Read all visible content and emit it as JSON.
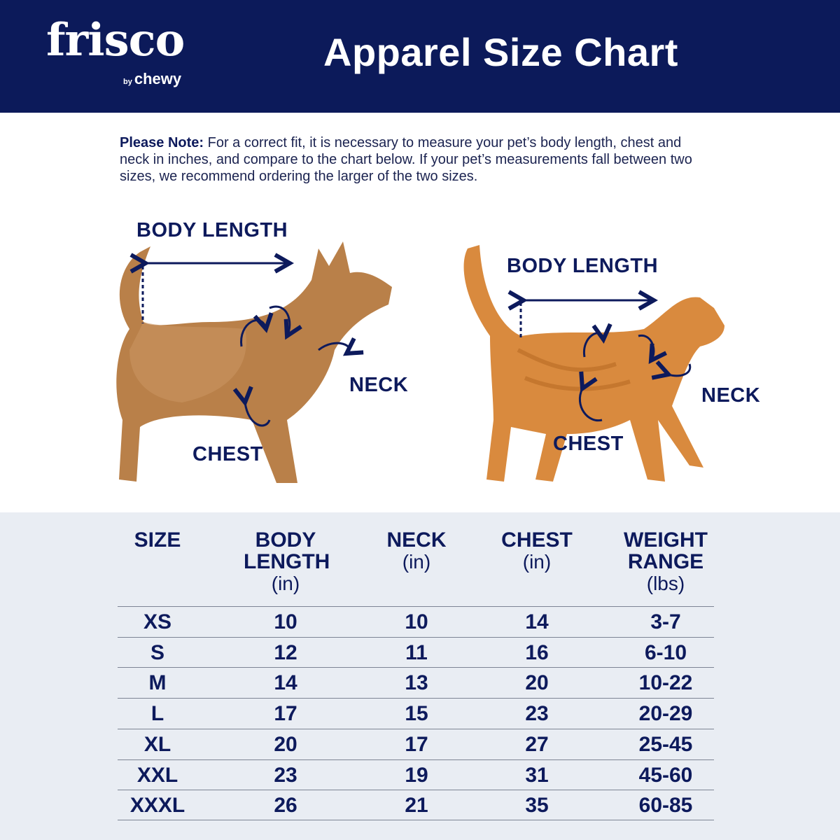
{
  "brand": {
    "logo_text": "frisco",
    "sub": "by",
    "sub_brand": "chewy"
  },
  "header": {
    "title": "Apparel Size Chart"
  },
  "note": {
    "label": "Please Note:",
    "text": " For a correct fit, it is necessary to measure your pet’s body length, chest and neck in inches, and compare to the chart below. If your pet’s measurements fall between two sizes, we recommend ordering the larger of the two sizes."
  },
  "diagram": {
    "dog": {
      "body_length": "BODY LENGTH",
      "neck": "NECK",
      "chest": "CHEST"
    },
    "cat": {
      "body_length": "BODY LENGTH",
      "neck": "NECK",
      "chest": "CHEST"
    }
  },
  "colors": {
    "navy": "#0c1a5a",
    "table_bg": "#e9edf3"
  },
  "table": {
    "headers": [
      {
        "title": "SIZE",
        "unit": ""
      },
      {
        "title": "BODY LENGTH",
        "unit": "(in)"
      },
      {
        "title": "NECK",
        "unit": "(in)"
      },
      {
        "title": "CHEST",
        "unit": "(in)"
      },
      {
        "title": "WEIGHT RANGE",
        "unit": "(lbs)"
      }
    ],
    "rows": [
      [
        "XS",
        "10",
        "10",
        "14",
        "3-7"
      ],
      [
        "S",
        "12",
        "11",
        "16",
        "6-10"
      ],
      [
        "M",
        "14",
        "13",
        "20",
        "10-22"
      ],
      [
        "L",
        "17",
        "15",
        "23",
        "20-29"
      ],
      [
        "XL",
        "20",
        "17",
        "27",
        "25-45"
      ],
      [
        "XXL",
        "23",
        "19",
        "31",
        "45-60"
      ],
      [
        "XXXL",
        "26",
        "21",
        "35",
        "60-85"
      ]
    ]
  }
}
